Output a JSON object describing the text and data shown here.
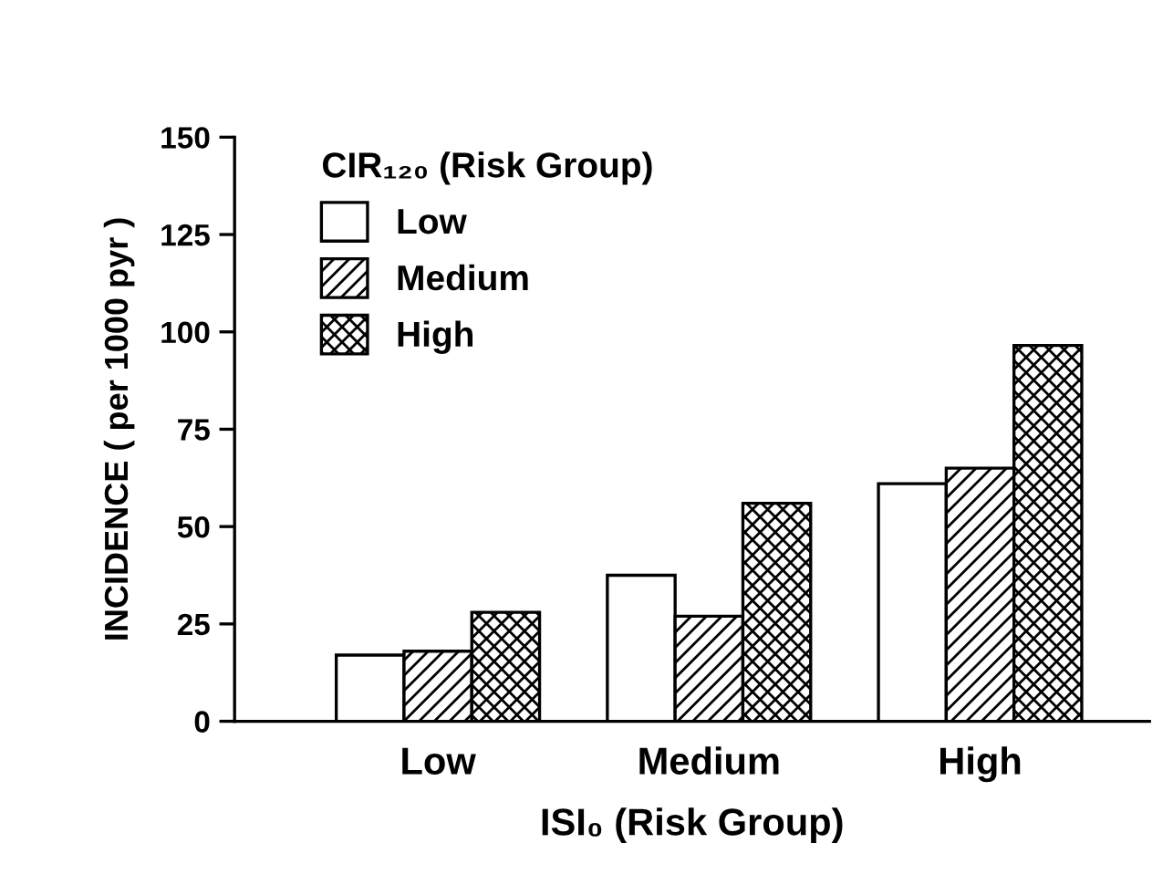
{
  "chart_data": {
    "type": "bar",
    "categories": [
      "Low",
      "Medium",
      "High"
    ],
    "xlabel": "ISI₀ (Risk Group)",
    "ylabel": "INCIDENCE ( per 1000 pyr )",
    "legend_title": "CIR₁₂₀ (Risk Group)",
    "series": [
      {
        "name": "Low",
        "color": "#ffffff",
        "values": [
          17,
          37.5,
          61
        ]
      },
      {
        "name": "Medium",
        "color": "#000000",
        "values": [
          18,
          27,
          65
        ]
      },
      {
        "name": "High",
        "color": "#000000",
        "values": [
          28,
          56,
          96.5
        ]
      }
    ],
    "ylim": [
      0,
      150
    ],
    "yticks": [
      0,
      25,
      50,
      75,
      100,
      125,
      150
    ],
    "grid": false,
    "legend": "top left"
  }
}
